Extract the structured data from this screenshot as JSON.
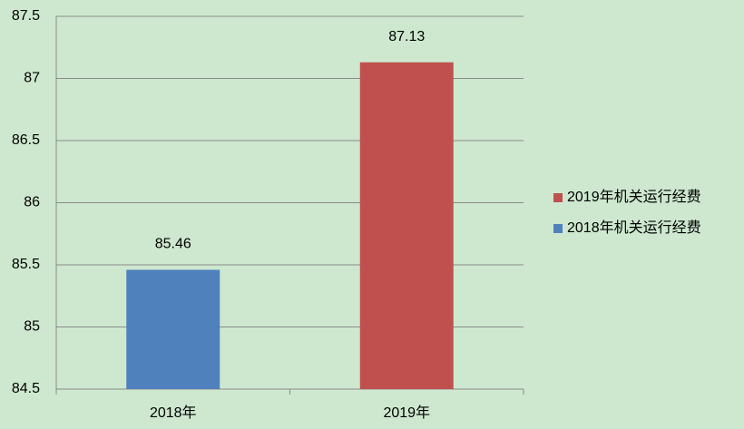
{
  "chart_data": {
    "type": "bar",
    "categories": [
      "2018年",
      "2019年"
    ],
    "series": [
      {
        "name": "2018年机关运行经费",
        "color": "#4f81bd",
        "values": [
          85.46,
          null
        ]
      },
      {
        "name": "2019年机关运行经费",
        "color": "#c0504d",
        "values": [
          null,
          87.13
        ]
      }
    ],
    "ylim": [
      84.5,
      87.5
    ],
    "yticks": [
      84.5,
      85,
      85.5,
      86,
      86.5,
      87,
      87.5
    ],
    "grid": true,
    "legend": "right"
  }
}
